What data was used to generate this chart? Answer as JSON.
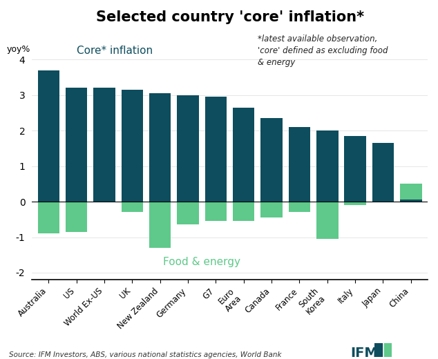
{
  "title": "Selected country 'core' inflation*",
  "ylabel": "yoy%",
  "annotation": "*latest available observation,\n'core' defined as excluding food\n& energy",
  "legend_core": "Core* inflation",
  "legend_food": "Food & energy",
  "source": "Source: IFM Investors, ABS, various national statistics agencies, World Bank",
  "categories": [
    "Australia",
    "US",
    "World Ex-US",
    "UK",
    "New Zealand",
    "Germany",
    "G7",
    "Euro\nArea",
    "Canada",
    "France",
    "South\nKorea",
    "Italy",
    "Japan",
    "China"
  ],
  "core_values": [
    3.7,
    3.2,
    3.2,
    3.15,
    3.05,
    3.0,
    2.95,
    2.65,
    2.35,
    2.1,
    2.0,
    1.85,
    1.65,
    0.05
  ],
  "food_energy_values": [
    -0.9,
    -0.85,
    0.15,
    -0.3,
    -1.3,
    -0.65,
    -0.55,
    -0.55,
    -0.45,
    -0.3,
    -1.05,
    -0.1,
    0.12,
    0.5
  ],
  "core_color": "#0d4d5e",
  "food_color": "#5ec98a",
  "ylim_min": -2.2,
  "ylim_max": 4.8,
  "bg_color": "#ffffff",
  "title_fontsize": 15,
  "label_fontsize": 8.5
}
